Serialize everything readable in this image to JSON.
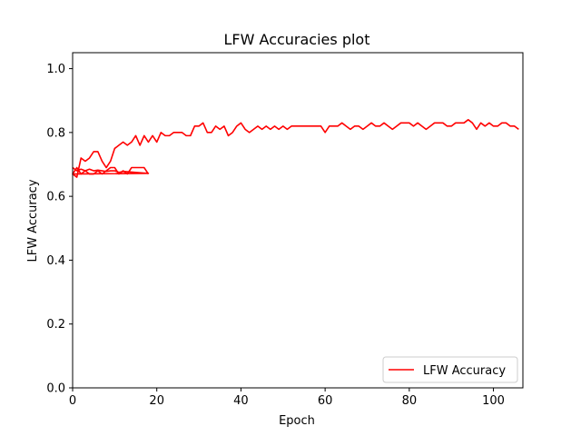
{
  "chart_data": {
    "type": "line",
    "title": "LFW Accuracies plot",
    "xlabel": "Epoch",
    "ylabel": "LFW Accuracy",
    "xlim": [
      0,
      107
    ],
    "ylim": [
      0,
      1.05
    ],
    "xticks": [
      "0",
      "20",
      "40",
      "60",
      "80",
      "100"
    ],
    "yticks": [
      "0.0",
      "0.2",
      "0.4",
      "0.6",
      "0.8",
      "1.0"
    ],
    "grid": false,
    "legend_position": "lower-right",
    "series": [
      {
        "name": "LFW Accuracy",
        "color": "#ff0000",
        "x": [
          0,
          1,
          2,
          3,
          4,
          5,
          6,
          7,
          8,
          9,
          10,
          11,
          12,
          13,
          14,
          15,
          16,
          17,
          18,
          0,
          1,
          2,
          3,
          4,
          5,
          6,
          7,
          8,
          9,
          10,
          11,
          12,
          13,
          14,
          15,
          16,
          17,
          18,
          19,
          20,
          21,
          22,
          23,
          24,
          25,
          26,
          27,
          28,
          29,
          30,
          31,
          32,
          33,
          34,
          35,
          36,
          37,
          38,
          39,
          40,
          41,
          42,
          43,
          44,
          45,
          46,
          47,
          48,
          49,
          50,
          51,
          52,
          53,
          54,
          55,
          56,
          57,
          58,
          59,
          60,
          61,
          62,
          63,
          64,
          65,
          66,
          67,
          68,
          69,
          70,
          71,
          72,
          73,
          74,
          75,
          76,
          77,
          78,
          79,
          80,
          81,
          82,
          83,
          84,
          85,
          86,
          87,
          88,
          89,
          90,
          91,
          92,
          93,
          94,
          95,
          96,
          97,
          98,
          99,
          100,
          101,
          102,
          103,
          104,
          105,
          106
        ],
        "y": [
          0.69,
          0.68,
          0.685,
          0.68,
          0.685,
          0.68,
          0.682,
          0.68,
          0.678,
          0.68,
          0.68,
          0.675,
          0.678,
          0.677,
          0.676,
          0.675,
          0.674,
          0.673,
          0.672,
          0.67,
          0.66,
          0.72,
          0.71,
          0.72,
          0.74,
          0.74,
          0.71,
          0.69,
          0.71,
          0.75,
          0.76,
          0.77,
          0.76,
          0.77,
          0.79,
          0.76,
          0.79,
          0.77,
          0.79,
          0.77,
          0.8,
          0.79,
          0.79,
          0.8,
          0.8,
          0.8,
          0.79,
          0.79,
          0.82,
          0.82,
          0.83,
          0.8,
          0.8,
          0.82,
          0.81,
          0.82,
          0.79,
          0.8,
          0.82,
          0.83,
          0.81,
          0.8,
          0.81,
          0.82,
          0.81,
          0.82,
          0.81,
          0.82,
          0.81,
          0.82,
          0.81,
          0.82,
          0.82,
          0.82,
          0.82,
          0.82,
          0.82,
          0.82,
          0.82,
          0.8,
          0.82,
          0.82,
          0.82,
          0.83,
          0.82,
          0.81,
          0.82,
          0.82,
          0.81,
          0.82,
          0.83,
          0.82,
          0.82,
          0.83,
          0.82,
          0.81,
          0.82,
          0.83,
          0.83,
          0.83,
          0.82,
          0.83,
          0.82,
          0.81,
          0.82,
          0.83,
          0.83,
          0.83,
          0.82,
          0.82,
          0.83,
          0.83,
          0.83,
          0.84,
          0.83,
          0.81,
          0.83,
          0.82,
          0.83,
          0.82,
          0.82,
          0.83,
          0.83,
          0.82,
          0.82,
          0.81
        ]
      },
      {
        "name": "",
        "color": "#ff0000",
        "x": [
          0,
          1,
          2,
          3,
          4,
          5,
          6,
          7,
          8,
          9,
          10,
          11,
          12,
          13,
          14,
          15,
          16,
          17,
          18
        ],
        "y": [
          0.67,
          0.69,
          0.67,
          0.68,
          0.67,
          0.67,
          0.68,
          0.67,
          0.68,
          0.69,
          0.69,
          0.67,
          0.68,
          0.67,
          0.69,
          0.69,
          0.69,
          0.69,
          0.67
        ]
      }
    ]
  }
}
